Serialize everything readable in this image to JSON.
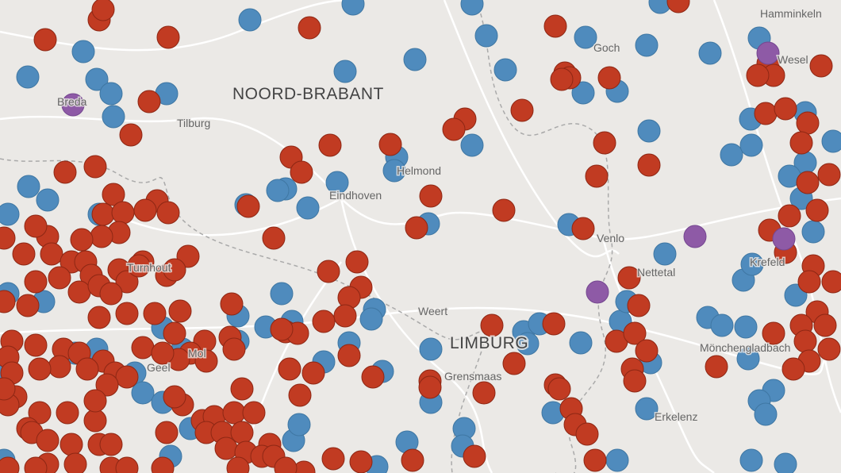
{
  "map": {
    "regions": [
      "NOORD-BRABANT",
      "LIMBURG"
    ],
    "places": [
      "Hamminkeln",
      "Goch",
      "Wesel",
      "Breda",
      "Tilburg",
      "Helmond",
      "Eindhoven",
      "Venlo",
      "Nettetal",
      "Krefeld",
      "Weert",
      "Grensmaas",
      "Mönchengladbach",
      "Erkelenz",
      "Turnhout",
      "Mol",
      "Geel"
    ]
  }
}
